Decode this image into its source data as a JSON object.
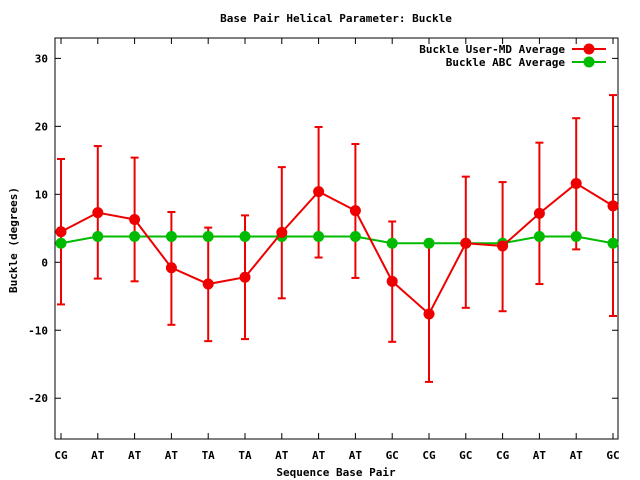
{
  "chart_data": {
    "type": "line",
    "title": "Base Pair Helical Parameter: Buckle",
    "xlabel": "Sequence Base Pair",
    "ylabel": "Buckle (degrees)",
    "categories": [
      "CG",
      "AT",
      "AT",
      "AT",
      "TA",
      "TA",
      "AT",
      "AT",
      "AT",
      "GC",
      "CG",
      "GC",
      "CG",
      "AT",
      "AT",
      "GC"
    ],
    "ylim": [
      -26,
      33
    ],
    "yticks": [
      -20,
      -10,
      0,
      10,
      20,
      30
    ],
    "ytick_labels": [
      "-20",
      "-10",
      "0",
      "10",
      "20",
      "30"
    ],
    "grid": false,
    "legend_position": "top-right",
    "series": [
      {
        "name": "Buckle User-MD Average",
        "color": "#ee0000",
        "values": [
          4.5,
          7.3,
          6.3,
          -0.8,
          -3.2,
          -2.2,
          4.4,
          10.4,
          7.6,
          -2.8,
          -7.6,
          2.8,
          2.4,
          7.2,
          11.6,
          8.3
        ],
        "error_low": [
          -6.2,
          -2.4,
          -2.8,
          -9.2,
          -11.6,
          -11.3,
          -5.3,
          0.7,
          -2.3,
          -11.7,
          -17.6,
          -6.7,
          -7.2,
          -3.2,
          1.9,
          -7.9
        ],
        "error_high": [
          15.2,
          17.1,
          15.4,
          7.4,
          5.1,
          6.9,
          14.0,
          19.9,
          17.4,
          6.0,
          2.6,
          12.6,
          11.8,
          17.6,
          21.2,
          24.6
        ]
      },
      {
        "name": "Buckle ABC Average",
        "color": "#00bb00",
        "values": [
          2.8,
          3.8,
          3.8,
          3.8,
          3.8,
          3.8,
          3.8,
          3.8,
          3.8,
          2.8,
          2.8,
          2.8,
          2.8,
          3.8,
          3.8,
          2.8
        ]
      }
    ]
  }
}
